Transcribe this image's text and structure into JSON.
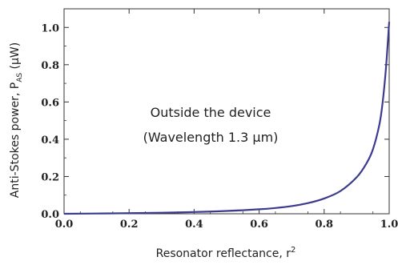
{
  "chart_data": {
    "type": "line",
    "xlabel": {
      "main": "Resonator reflectance, r",
      "sup": "2"
    },
    "ylabel": {
      "main": "Anti-Stokes power, P",
      "sub": "AS",
      "unit": " (μW)"
    },
    "annotation": [
      "Outside the device",
      "(Wavelength 1.3 μm)"
    ],
    "xlim": [
      0.0,
      1.0
    ],
    "ylim": [
      0.0,
      1.1
    ],
    "x_ticks": [
      "0.0",
      "0.2",
      "0.4",
      "0.6",
      "0.8",
      "1.0"
    ],
    "y_ticks": [
      "0.0",
      "0.2",
      "0.4",
      "0.6",
      "0.8",
      "1.0"
    ],
    "grid": false,
    "line_color": "#3b3b8f",
    "series": [
      {
        "x": [
          0.0,
          0.1,
          0.2,
          0.3,
          0.4,
          0.5,
          0.6,
          0.65,
          0.7,
          0.75,
          0.8,
          0.85,
          0.9,
          0.93,
          0.95,
          0.97,
          0.98,
          0.99,
          1.0
        ],
        "values": [
          0.0,
          0.0013,
          0.0032,
          0.0057,
          0.0094,
          0.0149,
          0.024,
          0.031,
          0.041,
          0.057,
          0.082,
          0.122,
          0.196,
          0.27,
          0.346,
          0.48,
          0.6,
          0.78,
          1.03
        ]
      }
    ]
  }
}
